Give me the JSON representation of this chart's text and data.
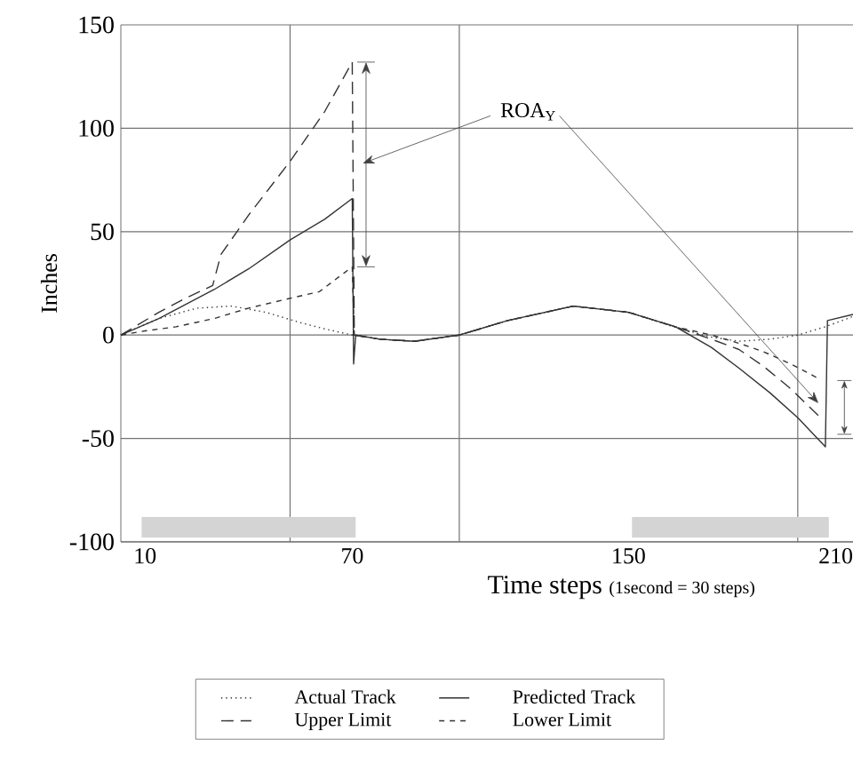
{
  "chart_data": {
    "type": "line",
    "xlabel": "Time steps",
    "ylabel": "Inches",
    "annotations": [
      "ROA$_{Y}$",
      "(1second = 30 steps)"
    ],
    "xlim": [
      3,
      215
    ],
    "ylim": [
      -100,
      150
    ],
    "xticks": [
      10,
      {
        "value": 52,
        "label": null
      },
      70,
      {
        "value": 101,
        "label": null
      },
      150,
      {
        "value": 199,
        "label": null
      },
      210
    ],
    "yticks": [
      -100,
      -50,
      0,
      50,
      100,
      150
    ],
    "grid": true,
    "legend": "bottom",
    "bands": [
      {
        "axis": "x",
        "from": 9,
        "to": 71,
        "color": "#d4d4d4"
      },
      {
        "axis": "x",
        "from": 151,
        "to": 208,
        "color": "#d4d4d4"
      }
    ],
    "series": [
      {
        "name": "Actual Track",
        "color": "#333333",
        "line_style": "dotted",
        "x": [
          3,
          14,
          25,
          35,
          45,
          55,
          62,
          70,
          78,
          88,
          101,
          115,
          134,
          150,
          163,
          174,
          182,
          191,
          199,
          207,
          215
        ],
        "values": [
          0,
          8,
          13,
          14,
          11,
          6,
          3,
          0,
          -2,
          -3,
          0,
          7,
          14,
          11,
          4,
          -1,
          -3,
          -2,
          0,
          4,
          9
        ]
      },
      {
        "name": "Predicted Track",
        "color": "#333333",
        "line_style": "solid",
        "x": [
          3,
          14,
          22,
          30,
          40,
          52,
          62,
          70,
          70.4,
          71,
          78,
          88,
          101,
          115,
          134,
          150,
          163.6,
          174,
          182,
          191,
          199,
          207,
          207.6,
          215
        ],
        "values": [
          0,
          8,
          15,
          22,
          32,
          46,
          56,
          66,
          -14,
          0,
          -2,
          -3,
          0,
          7,
          14,
          11,
          4,
          -6,
          -16,
          -28,
          -40,
          -54,
          7,
          10
        ]
      },
      {
        "name": "Upper Limit",
        "color": "#333333",
        "line_style": "dashed",
        "x": [
          3,
          14,
          22,
          29.6,
          32,
          40,
          52,
          62,
          70,
          70.6,
          78,
          88,
          101,
          115,
          134,
          150,
          163.6,
          174,
          182,
          189,
          197,
          205
        ],
        "values": [
          0,
          11,
          18,
          24,
          39,
          58,
          84,
          108,
          132,
          0,
          -2,
          -3,
          0,
          7,
          14,
          11,
          4,
          -2,
          -7,
          -15,
          -26,
          -39
        ]
      },
      {
        "name": "Lower Limit",
        "color": "#333333",
        "line_style": "loosely dashed",
        "x": [
          3,
          10,
          19,
          30,
          40,
          50,
          60.5,
          70,
          70.6,
          78,
          88,
          101,
          115,
          134,
          150,
          163.6,
          174,
          182,
          189,
          197,
          205
        ],
        "values": [
          0,
          2,
          4,
          8,
          13,
          17,
          21,
          33,
          0,
          -2,
          -3,
          0,
          7,
          14,
          11,
          4,
          0,
          -4,
          -8,
          -14,
          -21
        ]
      }
    ]
  }
}
